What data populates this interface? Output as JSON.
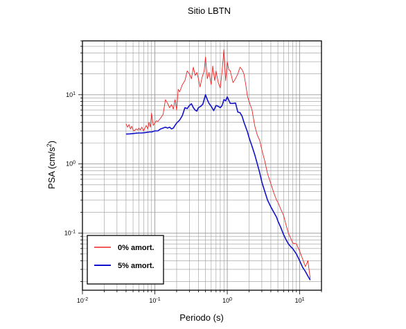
{
  "chart_data": {
    "type": "line",
    "title": "Sitio LBTN",
    "xlabel": "Periodo (s)",
    "ylabel_main": "PSA (cm/s",
    "ylabel_sup": "2",
    "ylabel_close": ")",
    "x_scale": "log",
    "y_scale": "log",
    "xlim": [
      0.01,
      20
    ],
    "ylim": [
      0.015,
      60
    ],
    "grid": true,
    "legend_position": "bottom-left",
    "x_ticks": [
      {
        "base": "10",
        "exp": "-2",
        "value": 0.01
      },
      {
        "base": "10",
        "exp": "-1",
        "value": 0.1
      },
      {
        "base": "10",
        "exp": "0",
        "value": 1
      },
      {
        "base": "10",
        "exp": "1",
        "value": 10
      }
    ],
    "y_ticks": [
      {
        "base": "10",
        "exp": "-1",
        "value": 0.1
      },
      {
        "base": "10",
        "exp": "0",
        "value": 1
      },
      {
        "base": "10",
        "exp": "1",
        "value": 10
      }
    ],
    "series": [
      {
        "name": "0% amort.",
        "color": "#ee2222",
        "x": [
          0.04,
          0.042,
          0.044,
          0.046,
          0.048,
          0.05,
          0.052,
          0.055,
          0.058,
          0.06,
          0.063,
          0.066,
          0.07,
          0.073,
          0.076,
          0.08,
          0.083,
          0.087,
          0.09,
          0.095,
          0.1,
          0.105,
          0.11,
          0.12,
          0.13,
          0.14,
          0.15,
          0.16,
          0.17,
          0.18,
          0.19,
          0.2,
          0.21,
          0.22,
          0.24,
          0.26,
          0.28,
          0.3,
          0.32,
          0.34,
          0.36,
          0.38,
          0.4,
          0.42,
          0.45,
          0.48,
          0.5,
          0.53,
          0.56,
          0.6,
          0.63,
          0.67,
          0.7,
          0.75,
          0.8,
          0.85,
          0.9,
          0.95,
          1.0,
          1.05,
          1.1,
          1.2,
          1.3,
          1.4,
          1.5,
          1.6,
          1.7,
          1.8,
          1.9,
          2.0,
          2.2,
          2.4,
          2.6,
          2.8,
          3.0,
          3.3,
          3.6,
          4.0,
          4.4,
          4.8,
          5.0,
          5.5,
          6.0,
          6.5,
          7.0,
          7.5,
          8.0,
          9.0,
          10.0,
          11.0,
          12.0,
          13.0,
          14.0
        ],
        "y": [
          3.8,
          3.4,
          3.7,
          3.2,
          3.5,
          3.1,
          3.0,
          3.2,
          3.1,
          3.3,
          3.1,
          3.4,
          3.0,
          3.3,
          3.6,
          3.2,
          4.0,
          3.4,
          5.4,
          3.6,
          3.9,
          4.2,
          4.1,
          4.6,
          5.2,
          8.5,
          7.5,
          6.5,
          7.2,
          6.2,
          8.5,
          6.0,
          12.0,
          11.0,
          14.0,
          16.0,
          22.0,
          20.0,
          17.0,
          25.0,
          19.0,
          21.0,
          17.0,
          13.0,
          18.0,
          22.0,
          35.0,
          17.0,
          21.0,
          14.0,
          26.0,
          16.0,
          22.0,
          15.0,
          12.5,
          22.0,
          45.0,
          16.0,
          30.0,
          23.0,
          22.0,
          15.0,
          17.0,
          20.0,
          25.0,
          23.0,
          20.0,
          14.0,
          9.5,
          8.0,
          6.0,
          3.5,
          2.6,
          2.2,
          1.6,
          1.1,
          0.72,
          0.52,
          0.38,
          0.3,
          0.28,
          0.22,
          0.18,
          0.13,
          0.1,
          0.085,
          0.072,
          0.07,
          0.055,
          0.042,
          0.033,
          0.04,
          0.022
        ]
      },
      {
        "name": "5% amort.",
        "color": "#1111cc",
        "x": [
          0.04,
          0.045,
          0.05,
          0.055,
          0.06,
          0.065,
          0.07,
          0.075,
          0.08,
          0.085,
          0.09,
          0.095,
          0.1,
          0.11,
          0.12,
          0.13,
          0.14,
          0.15,
          0.16,
          0.17,
          0.18,
          0.19,
          0.2,
          0.22,
          0.24,
          0.26,
          0.28,
          0.3,
          0.32,
          0.34,
          0.36,
          0.38,
          0.4,
          0.43,
          0.46,
          0.5,
          0.53,
          0.56,
          0.6,
          0.65,
          0.7,
          0.75,
          0.8,
          0.85,
          0.9,
          0.95,
          1.0,
          1.1,
          1.2,
          1.3,
          1.4,
          1.5,
          1.6,
          1.7,
          1.8,
          1.9,
          2.0,
          2.2,
          2.4,
          2.6,
          2.8,
          3.0,
          3.3,
          3.6,
          4.0,
          4.4,
          4.8,
          5.0,
          5.5,
          6.0,
          6.5,
          7.0,
          7.5,
          8.0,
          9.0,
          10.0,
          11.0,
          12.0,
          13.0,
          14.0
        ],
        "y": [
          2.7,
          2.72,
          2.75,
          2.78,
          2.8,
          2.8,
          2.82,
          2.85,
          2.88,
          2.9,
          2.9,
          2.95,
          3.0,
          3.0,
          3.2,
          3.3,
          3.4,
          3.3,
          3.4,
          3.2,
          3.3,
          3.6,
          3.9,
          4.3,
          5.0,
          6.5,
          6.3,
          7.0,
          7.4,
          6.5,
          6.0,
          5.8,
          6.5,
          6.8,
          7.3,
          10.0,
          8.5,
          7.5,
          6.8,
          5.9,
          7.0,
          6.8,
          6.5,
          7.0,
          8.5,
          8.2,
          9.3,
          7.5,
          7.5,
          7.6,
          5.6,
          5.5,
          4.9,
          4.0,
          3.4,
          2.9,
          2.4,
          1.8,
          1.35,
          1.0,
          0.75,
          0.55,
          0.4,
          0.3,
          0.24,
          0.2,
          0.17,
          0.15,
          0.12,
          0.095,
          0.08,
          0.07,
          0.064,
          0.06,
          0.05,
          0.04,
          0.032,
          0.028,
          0.024,
          0.021
        ]
      }
    ]
  }
}
